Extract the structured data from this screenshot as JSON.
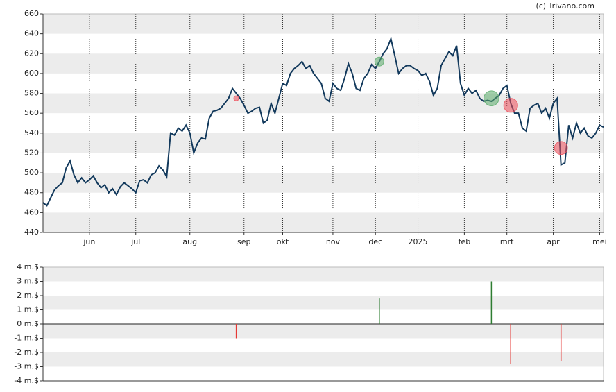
{
  "source": "(c) Trivano.com",
  "chart_data": [
    {
      "type": "line",
      "values": [
        470,
        467,
        475,
        483,
        487,
        490,
        505,
        512,
        498,
        490,
        495,
        490,
        493,
        497,
        490,
        485,
        488,
        480,
        484,
        478,
        486,
        490,
        487,
        484,
        480,
        492,
        493,
        490,
        498,
        500,
        507,
        503,
        496,
        540,
        538,
        545,
        542,
        548,
        540,
        520,
        530,
        535,
        534,
        555,
        562,
        563,
        565,
        570,
        575,
        585,
        580,
        575,
        568,
        560,
        562,
        565,
        566,
        550,
        553,
        570,
        560,
        575,
        590,
        588,
        600,
        605,
        608,
        612,
        605,
        608,
        600,
        595,
        590,
        575,
        572,
        590,
        585,
        583,
        595,
        610,
        600,
        585,
        583,
        595,
        600,
        609,
        605,
        612,
        620,
        625,
        635,
        618,
        600,
        605,
        608,
        608,
        605,
        603,
        598,
        600,
        592,
        578,
        585,
        608,
        615,
        622,
        618,
        628,
        590,
        578,
        585,
        580,
        583,
        575,
        572,
        573,
        572,
        575,
        578,
        585,
        588,
        570,
        560,
        560,
        545,
        542,
        565,
        568,
        570,
        560,
        565,
        555,
        570,
        575,
        508,
        510,
        548,
        535,
        550,
        540,
        545,
        537,
        535,
        540,
        548,
        546
      ],
      "color": "#12395c",
      "xlim": [
        0,
        145
      ],
      "xticks": [
        {
          "value": 12,
          "label": "jun"
        },
        {
          "value": 24,
          "label": "jul"
        },
        {
          "value": 38,
          "label": "aug"
        },
        {
          "value": 52,
          "label": "sep"
        },
        {
          "value": 62,
          "label": "okt"
        },
        {
          "value": 75,
          "label": "nov"
        },
        {
          "value": 86,
          "label": "dec"
        },
        {
          "value": 97,
          "label": "2025"
        },
        {
          "value": 109,
          "label": "feb"
        },
        {
          "value": 120,
          "label": "mrt"
        },
        {
          "value": 132,
          "label": "apr"
        },
        {
          "value": 144,
          "label": "mei"
        }
      ],
      "ylim": [
        440,
        660
      ],
      "yticks": [
        440,
        460,
        480,
        500,
        520,
        540,
        560,
        580,
        600,
        620,
        640,
        660
      ],
      "grid": true,
      "markers": {
        "x": [
          50,
          87,
          116,
          121,
          134
        ],
        "values": [
          575,
          612,
          575,
          568,
          525
        ],
        "colors": [
          "#ee4d5a",
          "#5aab6a",
          "#5aab6a",
          "#ee4d5a",
          "#ee4d5a"
        ]
      }
    },
    {
      "type": "bar",
      "x": [
        50,
        87,
        116,
        121,
        134
      ],
      "values": [
        -1.0,
        1.8,
        3.0,
        -2.8,
        -2.6
      ],
      "xlim": [
        0,
        145
      ],
      "ylim": [
        -4,
        4
      ],
      "yticks": [
        {
          "value": 4,
          "label": "4 m.$"
        },
        {
          "value": 3,
          "label": "3 m.$"
        },
        {
          "value": 2,
          "label": "2 m.$"
        },
        {
          "value": 1,
          "label": "1 m.$"
        },
        {
          "value": 0,
          "label": "0 m.$"
        },
        {
          "value": -1,
          "label": "-1 m.$"
        },
        {
          "value": -2,
          "label": "-2 m.$"
        },
        {
          "value": -3,
          "label": "-3 m.$"
        },
        {
          "value": -4,
          "label": "-4 m.$"
        }
      ],
      "grid": true,
      "colors": {
        "positive": "#2e7d32",
        "negative": "#e53935"
      }
    }
  ]
}
